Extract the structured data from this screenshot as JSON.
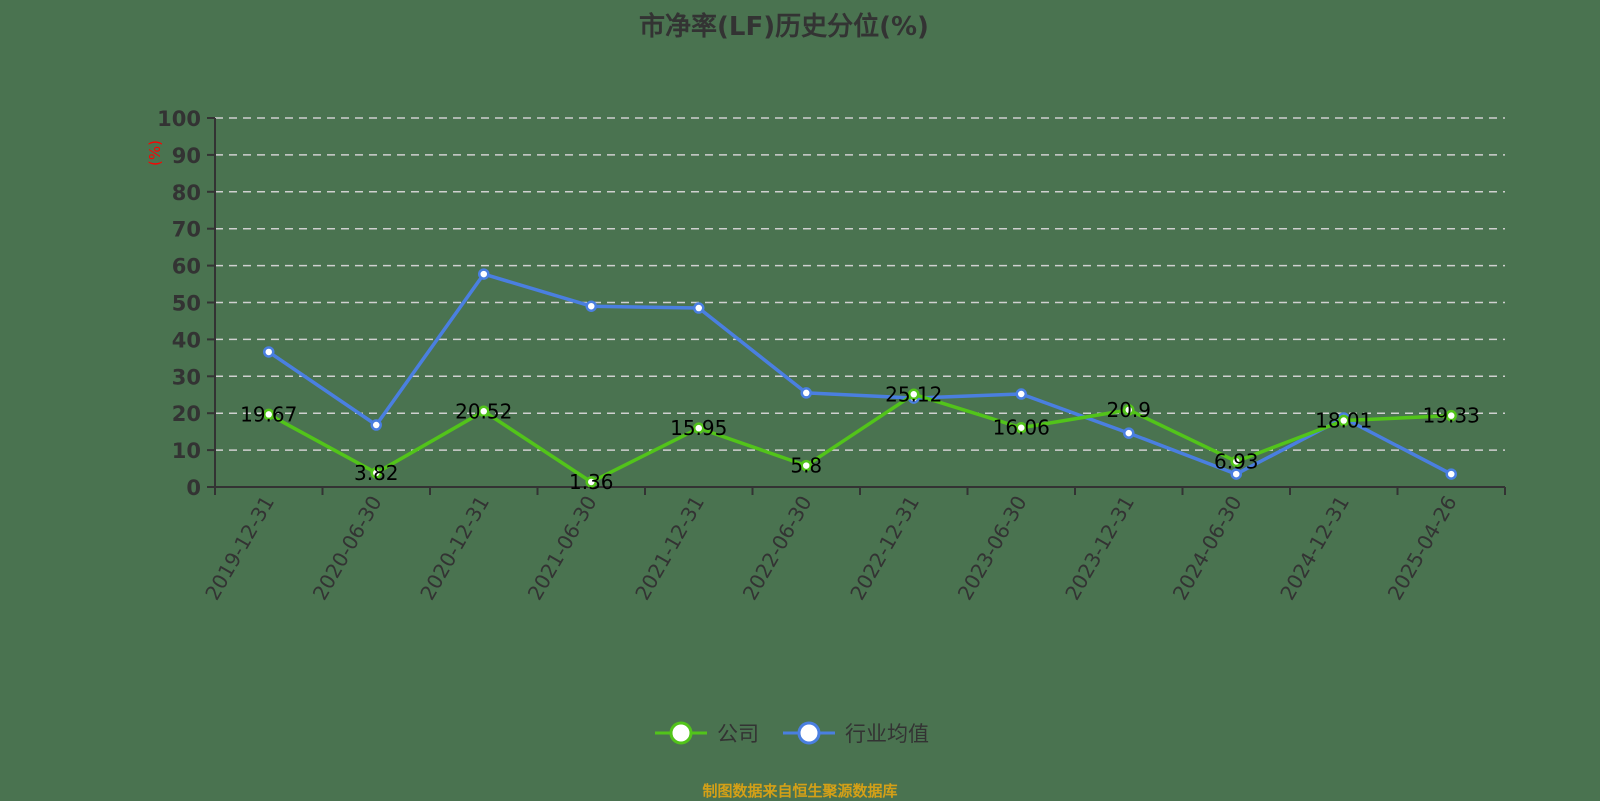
{
  "title": "市净率(LF)历史分位(%)",
  "y_unit_label": "(%)",
  "footer": "制图数据来自恒生聚源数据库",
  "legend": [
    {
      "label": "公司",
      "color": "#52c41a"
    },
    {
      "label": "行业均值",
      "color": "#4a7fe0"
    }
  ],
  "chart_data": {
    "type": "line",
    "title": "市净率(LF)历史分位(%)",
    "xlabel": "",
    "ylabel": "(%)",
    "ylim": [
      0,
      100
    ],
    "yticks": [
      0,
      10,
      20,
      30,
      40,
      50,
      60,
      70,
      80,
      90,
      100
    ],
    "grid": true,
    "legend_position": "bottom",
    "categories": [
      "2019-12-31",
      "2020-06-30",
      "2020-12-31",
      "2021-06-30",
      "2021-12-31",
      "2022-06-30",
      "2022-12-31",
      "2023-06-30",
      "2023-12-31",
      "2024-06-30",
      "2024-12-31",
      "2025-04-26"
    ],
    "series": [
      {
        "name": "公司",
        "color": "#52c41a",
        "values": [
          19.67,
          3.82,
          20.52,
          1.36,
          15.95,
          5.8,
          25.12,
          16.06,
          20.9,
          6.93,
          18.01,
          19.33
        ],
        "labels_shown": true
      },
      {
        "name": "行业均值",
        "color": "#4a7fe0",
        "values": [
          36.6,
          16.8,
          57.7,
          49.0,
          48.5,
          25.5,
          24.1,
          25.2,
          14.6,
          3.5,
          18.7,
          3.5
        ],
        "labels_shown": false
      }
    ]
  }
}
